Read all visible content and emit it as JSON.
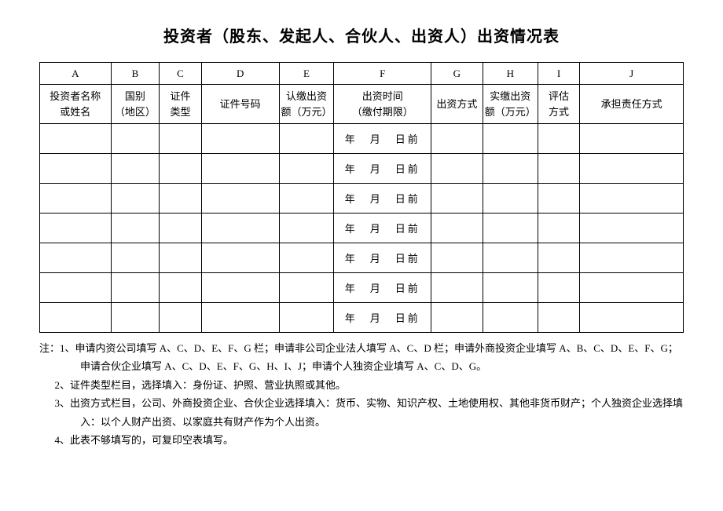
{
  "title": "投资者（股东、发起人、合伙人、出资人）出资情况表",
  "columns": {
    "letters": [
      "A",
      "B",
      "C",
      "D",
      "E",
      "F",
      "G",
      "H",
      "I",
      "J"
    ],
    "headers": [
      "投资者名称\n或姓名",
      "国别\n（地区）",
      "证件\n类型",
      "证件号码",
      "认缴出资\n额（万元）",
      "出资时间\n（缴付期限）",
      "出资方式",
      "实缴出资\n额（万元）",
      "评估\n方式",
      "承担责任方式"
    ]
  },
  "date_template": "年　月　日前",
  "rows": [
    {
      "a": "",
      "b": "",
      "c": "",
      "d": "",
      "e": "",
      "f": "年　月　日前",
      "g": "",
      "h": "",
      "i": "",
      "j": ""
    },
    {
      "a": "",
      "b": "",
      "c": "",
      "d": "",
      "e": "",
      "f": "年　月　日前",
      "g": "",
      "h": "",
      "i": "",
      "j": ""
    },
    {
      "a": "",
      "b": "",
      "c": "",
      "d": "",
      "e": "",
      "f": "年　月　日前",
      "g": "",
      "h": "",
      "i": "",
      "j": ""
    },
    {
      "a": "",
      "b": "",
      "c": "",
      "d": "",
      "e": "",
      "f": "年　月　日前",
      "g": "",
      "h": "",
      "i": "",
      "j": ""
    },
    {
      "a": "",
      "b": "",
      "c": "",
      "d": "",
      "e": "",
      "f": "年　月　日前",
      "g": "",
      "h": "",
      "i": "",
      "j": ""
    },
    {
      "a": "",
      "b": "",
      "c": "",
      "d": "",
      "e": "",
      "f": "年　月　日前",
      "g": "",
      "h": "",
      "i": "",
      "j": ""
    },
    {
      "a": "",
      "b": "",
      "c": "",
      "d": "",
      "e": "",
      "f": "年　月　日前",
      "g": "",
      "h": "",
      "i": "",
      "j": ""
    }
  ],
  "notes": [
    "注：1、申请内资公司填写 A、C、D、E、F、G 栏；申请非公司企业法人填写 A、C、D 栏；申请外商投资企业填写 A、B、C、D、E、F、G；申请合伙企业填写 A、C、D、E、F、G、H、I、J；申请个人独资企业填写 A、C、D、G。",
    "2、证件类型栏目，选择填入：身份证、护照、营业执照或其他。",
    "3、出资方式栏目，公司、外商投资企业、合伙企业选择填入：货币、实物、知识产权、土地使用权、其他非货币财产；个人独资企业选择填入：以个人财产出资、以家庭共有财产作为个人出资。",
    "4、此表不够填写的，可复印空表填写。"
  ]
}
